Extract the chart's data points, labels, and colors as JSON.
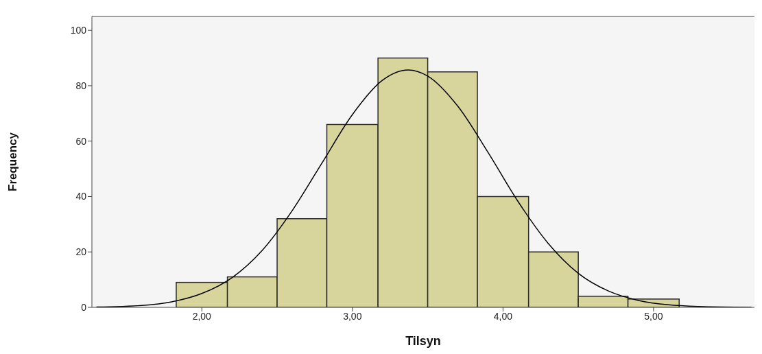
{
  "chart_data": {
    "type": "histogram",
    "xlabel": "Tilsyn",
    "ylabel": "Frequency",
    "bins": [
      1.83,
      2.17,
      2.5,
      2.83,
      3.17,
      3.5,
      3.83,
      4.17,
      4.5,
      4.83,
      5.17
    ],
    "values": [
      9,
      11,
      32,
      66,
      90,
      85,
      40,
      20,
      4,
      3
    ],
    "color": "#d7d49c",
    "xlim": [
      1.27,
      5.67
    ],
    "xticks": [
      {
        "value": 2,
        "label": "2,00"
      },
      {
        "value": 3,
        "label": "3,00"
      },
      {
        "value": 4,
        "label": "4,00"
      },
      {
        "value": 5,
        "label": "5,00"
      }
    ],
    "ylim": [
      0,
      105
    ],
    "yticks": [
      0,
      20,
      40,
      60,
      80,
      100
    ],
    "grid": false,
    "series": [
      {
        "type": "line",
        "color": "#000000",
        "x": [
          1.3,
          1.6,
          1.8,
          2.0,
          2.2,
          2.4,
          2.6,
          2.8,
          3.0,
          3.2,
          3.37,
          3.5,
          3.7,
          3.9,
          4.1,
          4.3,
          4.5,
          4.7,
          4.9,
          5.1,
          5.3,
          5.65
        ],
        "values": [
          0.1,
          0.7,
          2.0,
          5.0,
          10.7,
          20.5,
          34.9,
          52.3,
          69.6,
          82.0,
          85.7,
          83.5,
          72.6,
          56.0,
          38.2,
          23.1,
          12.3,
          5.9,
          2.5,
          0.9,
          0.3,
          0.0
        ]
      }
    ]
  }
}
